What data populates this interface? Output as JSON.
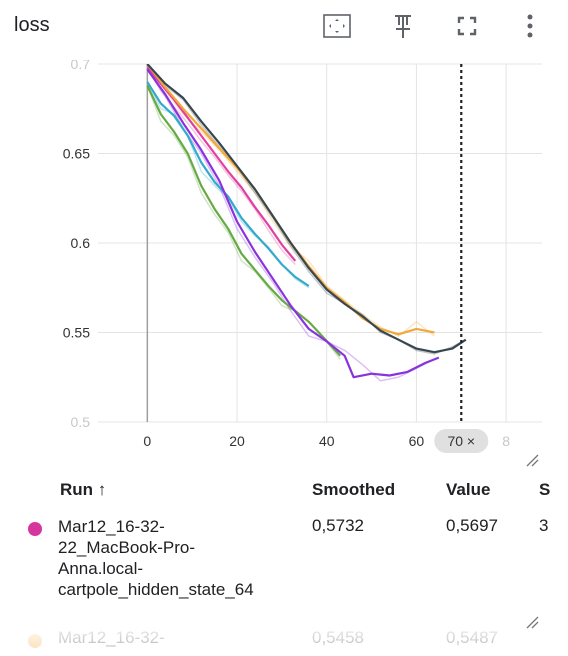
{
  "card": {
    "title": "loss",
    "toolbar": [
      {
        "name": "fit-domain-icon"
      },
      {
        "name": "pin-icon"
      },
      {
        "name": "fullscreen-icon"
      },
      {
        "name": "more-vert-icon"
      }
    ]
  },
  "chart_data": {
    "type": "line",
    "x_ticks": [
      "0",
      "20",
      "40",
      "60",
      "8"
    ],
    "y_ticks": [
      "0.5",
      "0.55",
      "0.6",
      "0.65",
      "0.7"
    ],
    "xlim": [
      -11,
      88
    ],
    "ylim": [
      0.5,
      0.7
    ],
    "grid": true,
    "hover_step": 70,
    "hover_label": "70 ×",
    "series": [
      {
        "color": "#e040a0",
        "raw": [
          [
            0,
            0.698
          ],
          [
            3,
            0.685
          ],
          [
            6,
            0.676
          ],
          [
            9,
            0.667
          ],
          [
            12,
            0.657
          ],
          [
            15,
            0.648
          ],
          [
            18,
            0.638
          ],
          [
            21,
            0.629
          ],
          [
            24,
            0.619
          ],
          [
            27,
            0.607
          ],
          [
            30,
            0.596
          ],
          [
            33,
            0.588
          ]
        ],
        "smoothed": [
          [
            0,
            0.698
          ],
          [
            3,
            0.689
          ],
          [
            6,
            0.68
          ],
          [
            9,
            0.67
          ],
          [
            12,
            0.66
          ],
          [
            15,
            0.65
          ],
          [
            18,
            0.64
          ],
          [
            21,
            0.631
          ],
          [
            24,
            0.62
          ],
          [
            27,
            0.61
          ],
          [
            30,
            0.599
          ],
          [
            33,
            0.59
          ]
        ]
      },
      {
        "color": "#f2a93b",
        "raw": [
          [
            0,
            0.7
          ],
          [
            4,
            0.685
          ],
          [
            8,
            0.672
          ],
          [
            12,
            0.662
          ],
          [
            16,
            0.652
          ],
          [
            20,
            0.64
          ],
          [
            24,
            0.628
          ],
          [
            28,
            0.612
          ],
          [
            32,
            0.598
          ],
          [
            36,
            0.59
          ],
          [
            40,
            0.576
          ],
          [
            44,
            0.568
          ],
          [
            48,
            0.56
          ],
          [
            52,
            0.553
          ],
          [
            56,
            0.548
          ],
          [
            60,
            0.556
          ],
          [
            64,
            0.548
          ]
        ],
        "smoothed": [
          [
            0,
            0.7
          ],
          [
            4,
            0.687
          ],
          [
            8,
            0.675
          ],
          [
            12,
            0.664
          ],
          [
            16,
            0.653
          ],
          [
            20,
            0.642
          ],
          [
            24,
            0.63
          ],
          [
            28,
            0.615
          ],
          [
            32,
            0.6
          ],
          [
            36,
            0.587
          ],
          [
            40,
            0.575
          ],
          [
            44,
            0.567
          ],
          [
            48,
            0.558
          ],
          [
            52,
            0.552
          ],
          [
            56,
            0.549
          ],
          [
            60,
            0.552
          ],
          [
            64,
            0.55
          ]
        ]
      },
      {
        "color": "#33aacc",
        "raw": [
          [
            0,
            0.69
          ],
          [
            3,
            0.675
          ],
          [
            6,
            0.672
          ],
          [
            9,
            0.66
          ],
          [
            12,
            0.64
          ],
          [
            15,
            0.632
          ],
          [
            18,
            0.625
          ],
          [
            21,
            0.612
          ],
          [
            24,
            0.604
          ],
          [
            27,
            0.598
          ],
          [
            30,
            0.588
          ],
          [
            33,
            0.58
          ],
          [
            36,
            0.575
          ]
        ],
        "smoothed": [
          [
            0,
            0.69
          ],
          [
            3,
            0.678
          ],
          [
            6,
            0.671
          ],
          [
            9,
            0.66
          ],
          [
            12,
            0.645
          ],
          [
            15,
            0.634
          ],
          [
            18,
            0.626
          ],
          [
            21,
            0.614
          ],
          [
            24,
            0.605
          ],
          [
            27,
            0.597
          ],
          [
            30,
            0.588
          ],
          [
            33,
            0.581
          ],
          [
            36,
            0.576
          ]
        ]
      },
      {
        "color": "#66aa44",
        "raw": [
          [
            0,
            0.688
          ],
          [
            3,
            0.668
          ],
          [
            6,
            0.66
          ],
          [
            9,
            0.648
          ],
          [
            12,
            0.628
          ],
          [
            15,
            0.616
          ],
          [
            18,
            0.606
          ],
          [
            21,
            0.59
          ],
          [
            24,
            0.584
          ],
          [
            27,
            0.575
          ],
          [
            30,
            0.565
          ],
          [
            33,
            0.562
          ],
          [
            36,
            0.556
          ],
          [
            39,
            0.548
          ],
          [
            43,
            0.535
          ]
        ],
        "smoothed": [
          [
            0,
            0.688
          ],
          [
            3,
            0.672
          ],
          [
            6,
            0.662
          ],
          [
            9,
            0.65
          ],
          [
            12,
            0.632
          ],
          [
            15,
            0.619
          ],
          [
            18,
            0.608
          ],
          [
            21,
            0.594
          ],
          [
            24,
            0.585
          ],
          [
            27,
            0.576
          ],
          [
            30,
            0.568
          ],
          [
            33,
            0.562
          ],
          [
            36,
            0.556
          ],
          [
            39,
            0.548
          ],
          [
            43,
            0.537
          ]
        ]
      },
      {
        "color": "#8833dd",
        "raw": [
          [
            0,
            0.697
          ],
          [
            4,
            0.682
          ],
          [
            8,
            0.664
          ],
          [
            12,
            0.65
          ],
          [
            16,
            0.632
          ],
          [
            20,
            0.608
          ],
          [
            24,
            0.592
          ],
          [
            28,
            0.578
          ],
          [
            32,
            0.562
          ],
          [
            36,
            0.548
          ],
          [
            40,
            0.545
          ],
          [
            44,
            0.54
          ],
          [
            48,
            0.532
          ],
          [
            52,
            0.523
          ],
          [
            56,
            0.525
          ],
          [
            60,
            0.53
          ],
          [
            64,
            0.535
          ]
        ],
        "smoothed": [
          [
            0,
            0.697
          ],
          [
            4,
            0.683
          ],
          [
            8,
            0.667
          ],
          [
            12,
            0.652
          ],
          [
            16,
            0.635
          ],
          [
            20,
            0.612
          ],
          [
            24,
            0.595
          ],
          [
            28,
            0.58
          ],
          [
            32,
            0.565
          ],
          [
            36,
            0.552
          ],
          [
            40,
            0.545
          ],
          [
            44,
            0.537
          ],
          [
            46,
            0.525
          ],
          [
            50,
            0.527
          ],
          [
            54,
            0.526
          ],
          [
            58,
            0.528
          ],
          [
            62,
            0.533
          ],
          [
            65,
            0.536
          ]
        ]
      },
      {
        "color": "#37474f",
        "raw": [
          [
            0,
            0.7
          ],
          [
            4,
            0.688
          ],
          [
            8,
            0.68
          ],
          [
            12,
            0.666
          ],
          [
            16,
            0.654
          ],
          [
            20,
            0.642
          ],
          [
            24,
            0.628
          ],
          [
            28,
            0.614
          ],
          [
            32,
            0.598
          ],
          [
            36,
            0.584
          ],
          [
            40,
            0.572
          ],
          [
            44,
            0.566
          ],
          [
            48,
            0.56
          ],
          [
            52,
            0.55
          ],
          [
            56,
            0.546
          ],
          [
            60,
            0.54
          ],
          [
            64,
            0.538
          ],
          [
            68,
            0.542
          ],
          [
            71,
            0.546
          ]
        ],
        "smoothed": [
          [
            0,
            0.7
          ],
          [
            4,
            0.689
          ],
          [
            8,
            0.681
          ],
          [
            12,
            0.668
          ],
          [
            16,
            0.656
          ],
          [
            20,
            0.643
          ],
          [
            24,
            0.63
          ],
          [
            28,
            0.615
          ],
          [
            32,
            0.6
          ],
          [
            36,
            0.586
          ],
          [
            40,
            0.574
          ],
          [
            44,
            0.566
          ],
          [
            48,
            0.559
          ],
          [
            52,
            0.551
          ],
          [
            56,
            0.546
          ],
          [
            60,
            0.541
          ],
          [
            64,
            0.539
          ],
          [
            68,
            0.541
          ],
          [
            71,
            0.546
          ]
        ]
      }
    ]
  },
  "table": {
    "headers": {
      "run": "Run ↑",
      "smoothed": "Smoothed",
      "value": "Value",
      "step": "S"
    },
    "rows": [
      {
        "color": "#d6359d",
        "name": "Mar12_16-32-22_MacBook-Pro-Anna.local-cartpole_hidden_state_64",
        "name_lines": [
          "Mar12_16-32-",
          "22_MacBook-Pro-",
          "Anna.local-",
          "cartpole_hidden_state_64"
        ],
        "smoothed": "0,5732",
        "value": "0,5697",
        "step": "3"
      },
      {
        "color": "#f2a93b",
        "name_lines": [
          "Mar12_16-32-"
        ],
        "smoothed": "0,5458",
        "value": "0,5487",
        "step": ""
      }
    ]
  }
}
